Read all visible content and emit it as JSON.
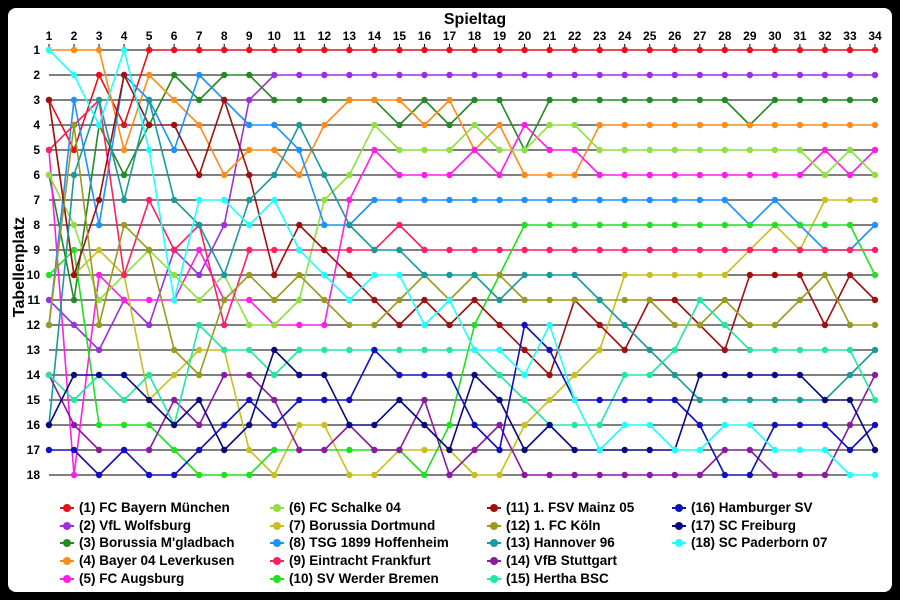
{
  "chart_data": {
    "type": "line",
    "xlabel": "Spieltag",
    "ylabel": "Tabellenplatz",
    "x": [
      1,
      2,
      3,
      4,
      5,
      6,
      7,
      8,
      9,
      10,
      11,
      12,
      13,
      14,
      15,
      16,
      17,
      18,
      19,
      20,
      21,
      22,
      23,
      24,
      25,
      26,
      27,
      28,
      29,
      30,
      31,
      32,
      33,
      34
    ],
    "xlim": [
      1,
      34
    ],
    "ylim": [
      1,
      18
    ],
    "y_inverted": true,
    "yticks": [
      1,
      2,
      3,
      4,
      5,
      6,
      7,
      8,
      9,
      10,
      11,
      12,
      13,
      14,
      15,
      16,
      17,
      18
    ],
    "grid": true,
    "series": [
      {
        "name": "(1) FC Bayern München",
        "color": "#e8101a",
        "values": [
          3,
          5,
          2,
          4,
          1,
          1,
          1,
          1,
          1,
          1,
          1,
          1,
          1,
          1,
          1,
          1,
          1,
          1,
          1,
          1,
          1,
          1,
          1,
          1,
          1,
          1,
          1,
          1,
          1,
          1,
          1,
          1,
          1,
          1
        ]
      },
      {
        "name": "(2) VfL Wolfsburg",
        "color": "#9b30e0",
        "values": [
          11,
          12,
          13,
          11,
          12,
          9,
          10,
          8,
          3,
          2,
          2,
          2,
          2,
          2,
          2,
          2,
          2,
          2,
          2,
          2,
          2,
          2,
          2,
          2,
          2,
          2,
          2,
          2,
          2,
          2,
          2,
          2,
          2,
          2
        ]
      },
      {
        "name": "(3) Borussia M'gladbach",
        "color": "#238b23",
        "values": [
          6,
          11,
          4,
          6,
          4,
          2,
          3,
          2,
          2,
          3,
          3,
          3,
          3,
          3,
          4,
          3,
          4,
          3,
          3,
          5,
          3,
          3,
          3,
          3,
          3,
          3,
          3,
          3,
          4,
          3,
          3,
          3,
          3,
          3
        ]
      },
      {
        "name": "(4) Bayer 04 Leverkusen",
        "color": "#ff8c1a",
        "values": [
          1,
          1,
          1,
          5,
          2,
          3,
          4,
          6,
          5,
          5,
          6,
          4,
          3,
          3,
          3,
          4,
          3,
          5,
          4,
          6,
          6,
          6,
          4,
          4,
          4,
          4,
          4,
          4,
          4,
          4,
          4,
          4,
          4,
          4
        ]
      },
      {
        "name": "(5) FC Augsburg",
        "color": "#ff1ee6",
        "values": [
          5,
          18,
          10,
          11,
          11,
          11,
          9,
          11,
          11,
          12,
          12,
          12,
          7,
          5,
          6,
          6,
          6,
          5,
          6,
          4,
          5,
          5,
          6,
          6,
          6,
          6,
          6,
          6,
          6,
          6,
          6,
          5,
          6,
          5
        ]
      },
      {
        "name": "(6) FC Schalke 04",
        "color": "#90e040",
        "values": [
          6,
          8,
          11,
          10,
          9,
          10,
          11,
          10,
          12,
          12,
          11,
          7,
          6,
          4,
          5,
          5,
          5,
          4,
          5,
          5,
          4,
          4,
          5,
          5,
          5,
          5,
          5,
          5,
          5,
          5,
          5,
          6,
          5,
          6
        ]
      },
      {
        "name": "(7) Borussia Dortmund",
        "color": "#c8c020",
        "values": [
          3,
          10,
          9,
          10,
          15,
          14,
          13,
          13,
          17,
          18,
          16,
          16,
          18,
          18,
          17,
          17,
          17,
          18,
          18,
          16,
          15,
          14,
          13,
          10,
          10,
          10,
          10,
          10,
          9,
          8,
          9,
          7,
          7,
          7
        ]
      },
      {
        "name": "(8) TSG 1899 Hoffenheim",
        "color": "#1e90ff",
        "values": [
          12,
          3,
          8,
          2,
          3,
          5,
          2,
          3,
          4,
          4,
          5,
          8,
          8,
          7,
          7,
          7,
          7,
          7,
          7,
          7,
          7,
          7,
          7,
          7,
          7,
          7,
          7,
          7,
          8,
          7,
          8,
          9,
          9,
          8
        ]
      },
      {
        "name": "(9) Eintracht Frankfurt",
        "color": "#ff2060",
        "values": [
          5,
          4,
          3,
          10,
          7,
          9,
          8,
          12,
          9,
          9,
          9,
          9,
          9,
          9,
          8,
          9,
          9,
          9,
          9,
          9,
          9,
          9,
          9,
          9,
          9,
          9,
          9,
          9,
          9,
          9,
          9,
          9,
          9,
          9
        ]
      },
      {
        "name": "(10) SV Werder Bremen",
        "color": "#20e020",
        "values": [
          10,
          9,
          16,
          16,
          16,
          17,
          18,
          18,
          18,
          17,
          17,
          17,
          17,
          17,
          17,
          18,
          16,
          12,
          10,
          8,
          8,
          8,
          8,
          8,
          8,
          8,
          8,
          8,
          8,
          8,
          8,
          8,
          8,
          10
        ]
      },
      {
        "name": "(11) 1. FSV Mainz 05",
        "color": "#a01010",
        "values": [
          3,
          10,
          7,
          2,
          4,
          4,
          6,
          3,
          6,
          10,
          8,
          9,
          10,
          11,
          12,
          11,
          12,
          11,
          12,
          13,
          14,
          11,
          12,
          13,
          11,
          11,
          12,
          13,
          10,
          10,
          10,
          12,
          10,
          11
        ]
      },
      {
        "name": "(12) 1. FC Köln",
        "color": "#9a9a20",
        "values": [
          12,
          4,
          12,
          8,
          9,
          13,
          14,
          11,
          10,
          11,
          10,
          11,
          12,
          12,
          11,
          10,
          11,
          10,
          10,
          11,
          11,
          11,
          11,
          11,
          11,
          12,
          12,
          11,
          12,
          12,
          11,
          10,
          12,
          12
        ]
      },
      {
        "name": "(13) Hannover 96",
        "color": "#1a9a9a",
        "values": [
          16,
          6,
          3,
          7,
          3,
          7,
          8,
          10,
          7,
          6,
          4,
          6,
          8,
          9,
          9,
          10,
          10,
          10,
          11,
          10,
          10,
          10,
          11,
          12,
          13,
          14,
          15,
          15,
          15,
          15,
          15,
          15,
          14,
          13
        ]
      },
      {
        "name": "(14) VfB Stuttgart",
        "color": "#8a1aa0",
        "values": [
          14,
          16,
          17,
          17,
          17,
          15,
          16,
          14,
          14,
          15,
          17,
          17,
          16,
          17,
          17,
          15,
          18,
          17,
          16,
          18,
          18,
          18,
          18,
          18,
          18,
          18,
          18,
          17,
          17,
          18,
          18,
          18,
          16,
          14
        ]
      },
      {
        "name": "(15) Hertha BSC",
        "color": "#20e8a0",
        "values": [
          14,
          15,
          14,
          15,
          14,
          16,
          12,
          13,
          13,
          14,
          13,
          13,
          13,
          13,
          13,
          13,
          13,
          13,
          14,
          15,
          16,
          16,
          16,
          14,
          14,
          13,
          11,
          12,
          13,
          13,
          13,
          13,
          13,
          15
        ]
      },
      {
        "name": "(16) Hamburger SV",
        "color": "#1010c0",
        "values": [
          17,
          17,
          18,
          17,
          18,
          18,
          17,
          16,
          15,
          16,
          15,
          15,
          15,
          13,
          14,
          14,
          14,
          16,
          17,
          12,
          13,
          15,
          15,
          15,
          15,
          15,
          16,
          18,
          18,
          16,
          16,
          16,
          17,
          16
        ]
      },
      {
        "name": "(17) SC Freiburg",
        "color": "#0a0a80",
        "values": [
          16,
          14,
          14,
          14,
          15,
          16,
          15,
          17,
          16,
          13,
          14,
          14,
          16,
          16,
          15,
          16,
          17,
          14,
          15,
          17,
          16,
          17,
          17,
          17,
          17,
          17,
          14,
          14,
          14,
          14,
          14,
          15,
          15,
          17
        ]
      },
      {
        "name": "(18) SC Paderborn 07",
        "color": "#20ffff",
        "values": [
          1,
          2,
          4,
          1,
          5,
          11,
          7,
          7,
          8,
          7,
          9,
          10,
          11,
          10,
          10,
          12,
          11,
          13,
          13,
          14,
          12,
          15,
          17,
          16,
          16,
          17,
          17,
          16,
          16,
          17,
          17,
          17,
          18,
          18
        ]
      }
    ]
  }
}
